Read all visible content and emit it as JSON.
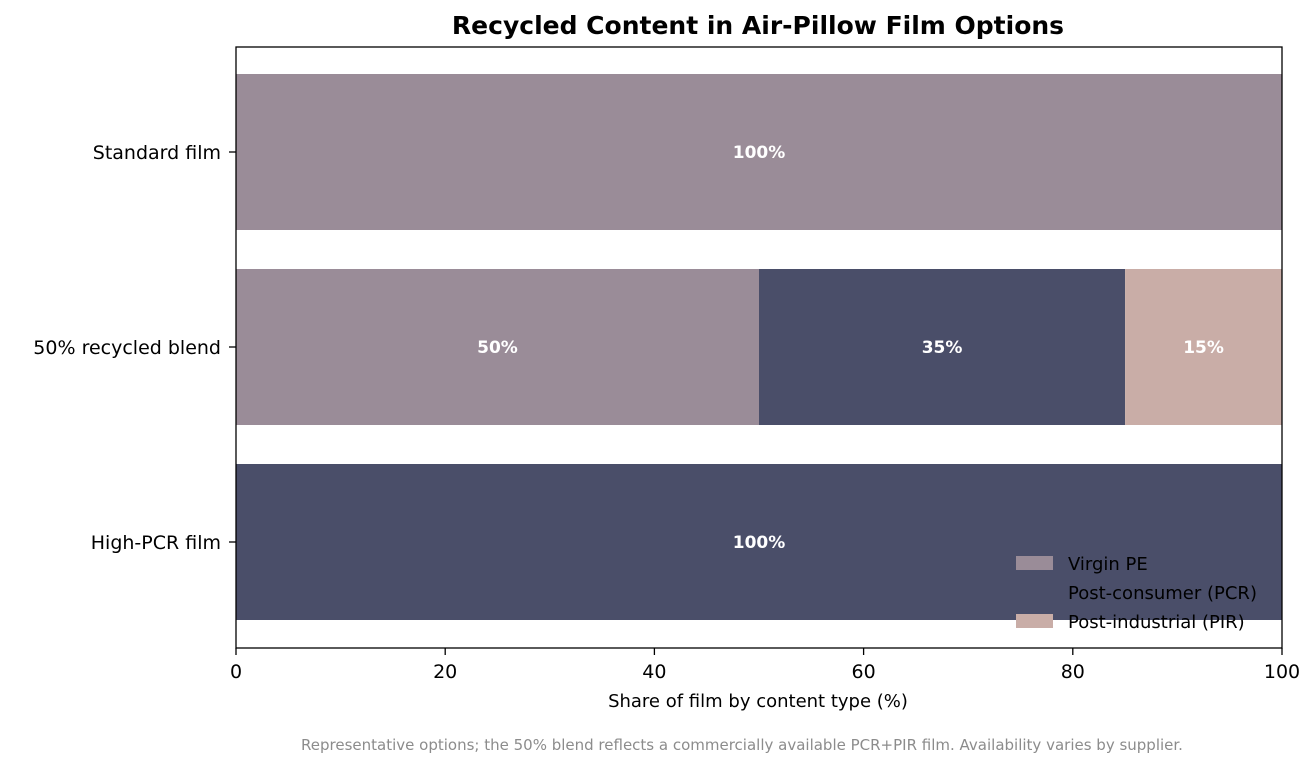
{
  "chart_data": {
    "type": "bar",
    "orientation": "horizontal",
    "stacked": true,
    "title": "Recycled Content in Air-Pillow Film Options",
    "xlabel": "Share of film by content type (%)",
    "ylabel": "",
    "xlim": [
      0,
      100
    ],
    "x_ticks": [
      0,
      20,
      40,
      60,
      80,
      100
    ],
    "categories": [
      "Standard film",
      "50% recycled blend",
      "High-PCR film"
    ],
    "series": [
      {
        "name": "Virgin PE",
        "color": "#9a8c98",
        "values": [
          100,
          50,
          0
        ]
      },
      {
        "name": "Post-consumer (PCR)",
        "color": "#4a4e69",
        "values": [
          0,
          35,
          100
        ]
      },
      {
        "name": "Post-industrial (PIR)",
        "color": "#c9ada7",
        "values": [
          0,
          15,
          0
        ]
      }
    ],
    "data_label_suffix": "%",
    "legend_position": "lower-right",
    "grid": false,
    "footnote": "Representative options; the 50% blend reflects a commercially available PCR+PIR film. Availability varies by supplier."
  }
}
